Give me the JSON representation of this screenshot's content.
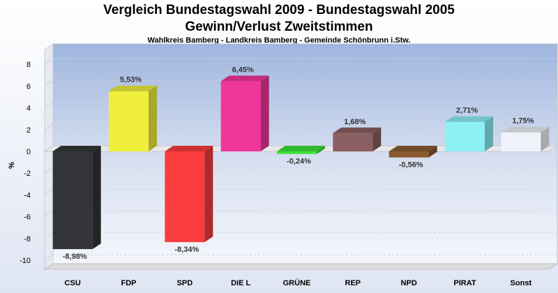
{
  "chart_data": {
    "type": "bar",
    "title": "Vergleich Bundestagswahl 2009 - Bundestagswahl 2005",
    "subtitle1": "Gewinn/Verlust Zweitstimmen",
    "subtitle2": "Wahlkreis Bamberg - Landkreis Bamberg - Gemeinde Schönbrunn i.Stw.",
    "ylabel": "%",
    "xlabel": "",
    "ylim": [
      -11,
      9
    ],
    "yticks": [
      8,
      6,
      4,
      2,
      0,
      -2,
      -4,
      -6,
      -8,
      -10
    ],
    "grid": true,
    "categories": [
      "CSU",
      "FDP",
      "SPD",
      "DIE L",
      "GRÜNE",
      "REP",
      "NPD",
      "PIRAT",
      "Sonst"
    ],
    "values": [
      -8.98,
      5.53,
      -8.34,
      6.45,
      -0.24,
      1.68,
      -0.56,
      2.71,
      1.75
    ],
    "data_labels": [
      "-8,98%",
      "5,53%",
      "-8,34%",
      "6,45%",
      "-0,24%",
      "1,68%",
      "-0,56%",
      "2,71%",
      "1,75%"
    ],
    "colors": [
      "#333438",
      "#f0f03c",
      "#fa3c3c",
      "#f0369a",
      "#3ce03c",
      "#8c5f62",
      "#8c5a30",
      "#8cf0f5",
      "#f0f3fa"
    ]
  }
}
